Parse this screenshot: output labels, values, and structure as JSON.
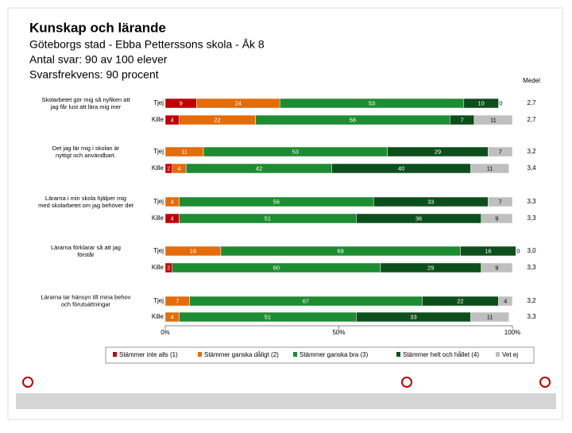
{
  "header": {
    "title": "Kunskap och lärande",
    "lines": [
      "Göteborgs stad - Ebba Petterssons skola - Åk 8",
      "Antal svar: 90 av 100 elever",
      "Svarsfrekvens: 90 procent"
    ]
  },
  "chart_data": {
    "type": "bar",
    "orientation": "horizontal",
    "stacked": true,
    "questions": [
      "Skolarbetet gör mig så nyfiken att jag får lust att lära mig mer",
      "Det jag lär mig i skolan är nyttigt och användbart.",
      "Lärarna i min skola hjälper mig med skolarbetet om jag behöver det",
      "Lärarna förklarar så att jag förstår",
      "Lärarna tar hänsyn till mina behov och förutsättningar"
    ],
    "categories": [
      "Tjej",
      "Kille",
      "Tjej",
      "Kille",
      "Tjej",
      "Kille",
      "Tjej",
      "Kille",
      "Tjej",
      "Kille"
    ],
    "series": [
      {
        "name": "Stämmer inte alls (1)",
        "color": "#c00000",
        "values": [
          9,
          4,
          0,
          2,
          0,
          4,
          0,
          2,
          0,
          0
        ]
      },
      {
        "name": "Stämmer ganska dåligt (2)",
        "color": "#e46c0a",
        "values": [
          24,
          22,
          11,
          4,
          4,
          0,
          16,
          0,
          7,
          4
        ]
      },
      {
        "name": "Stämmer ganska bra (3)",
        "color": "#1e8c32",
        "values": [
          53,
          56,
          53,
          42,
          56,
          51,
          69,
          60,
          67,
          51
        ]
      },
      {
        "name": "Stämmer helt och hållet (4)",
        "color": "#0d4f1c",
        "values": [
          10,
          7,
          29,
          40,
          33,
          36,
          16,
          29,
          22,
          33
        ]
      },
      {
        "name": "Vet ej",
        "color": "#bfbfbf",
        "values": [
          0,
          11,
          7,
          11,
          7,
          9,
          0,
          9,
          4,
          11
        ]
      }
    ],
    "medel_title": "Medel",
    "medel": [
      "2,7",
      "2,7",
      "3,2",
      "3,4",
      "3,3",
      "3,3",
      "3,0",
      "3,3",
      "3,2",
      "3,3"
    ],
    "xlim": [
      0,
      100
    ],
    "xticks": [
      {
        "value": 0,
        "label": "0%"
      },
      {
        "value": 50,
        "label": "50%"
      },
      {
        "value": 100,
        "label": "100%"
      }
    ],
    "legend": "bottom"
  }
}
